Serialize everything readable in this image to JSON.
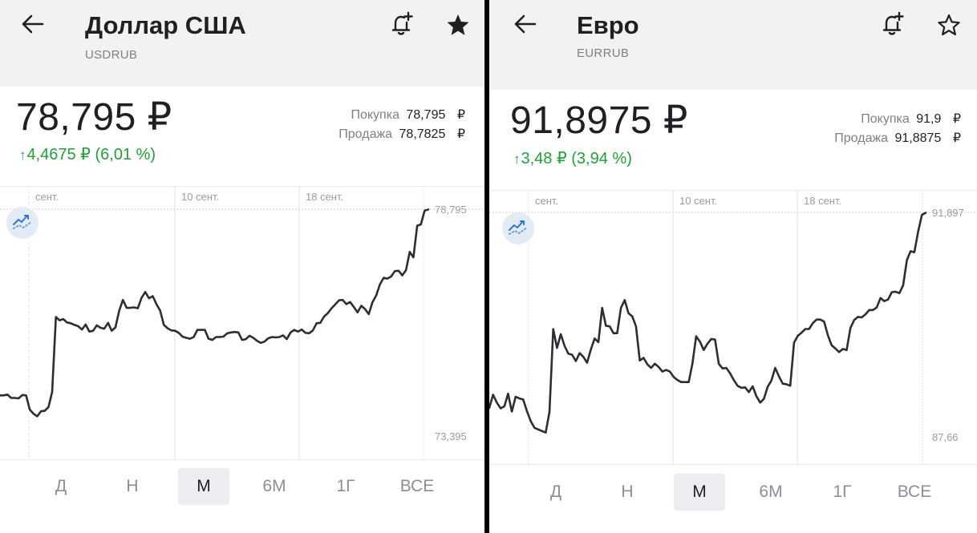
{
  "panels": [
    {
      "title": "Доллар США",
      "ticker": "USDRUB",
      "price": "78,795 ₽",
      "change_arrow": "↑",
      "change": "4,4675 ₽ (6,01 %)",
      "buy_label": "Покупка",
      "buy_value": "78,795",
      "sell_label": "Продажа",
      "sell_value": "78,7825",
      "currency_symbol": "₽",
      "favorite": true,
      "icons": {
        "back": "arrow-left-icon",
        "alert": "bell-plus-icon",
        "favorite": "star-filled-icon",
        "chart_type": "trend-line-icon"
      },
      "chart_data": {
        "type": "line",
        "x_tick_labels": [
          "сент.",
          "10 сент.",
          "18 сент."
        ],
        "y_max_label": "78,795",
        "y_min_label": "73,395",
        "ylim": [
          73.395,
          78.795
        ],
        "grid": true,
        "line_color": "#2d2d33",
        "values": [
          74.33,
          74.33,
          74.35,
          74.27,
          74.27,
          74.26,
          74.34,
          74.33,
          73.99,
          73.89,
          73.83,
          73.95,
          73.96,
          74.05,
          74.41,
          76.21,
          76.13,
          76.16,
          76.08,
          76.06,
          76.02,
          75.99,
          75.91,
          76.03,
          75.86,
          75.88,
          76.01,
          75.95,
          75.93,
          76.07,
          75.88,
          75.96,
          76.36,
          76.62,
          76.43,
          76.43,
          76.44,
          76.42,
          76.67,
          76.81,
          76.66,
          76.71,
          76.52,
          76.36,
          76.02,
          75.94,
          75.89,
          75.88,
          75.83,
          75.74,
          75.71,
          75.69,
          75.73,
          75.9,
          75.9,
          75.9,
          75.69,
          75.66,
          75.73,
          75.73,
          75.74,
          75.82,
          75.84,
          75.85,
          75.84,
          75.66,
          75.68,
          75.76,
          75.71,
          75.64,
          75.59,
          75.62,
          75.7,
          75.73,
          75.72,
          75.73,
          75.77,
          75.68,
          75.84,
          75.9,
          75.86,
          75.91,
          75.83,
          75.82,
          75.89,
          76.06,
          76.07,
          76.22,
          76.3,
          76.42,
          76.51,
          76.61,
          76.62,
          76.52,
          76.57,
          76.45,
          76.32,
          76.48,
          76.4,
          76.28,
          76.56,
          76.73,
          76.99,
          77.15,
          77.13,
          77.18,
          77.31,
          77.32,
          77.21,
          77.33,
          77.77,
          77.64,
          78.4,
          78.43,
          78.76,
          78.79
        ]
      },
      "periods": [
        "Д",
        "Н",
        "М",
        "6М",
        "1Г",
        "ВСЕ"
      ],
      "active_period": "М"
    },
    {
      "title": "Евро",
      "ticker": "EURRUB",
      "price": "91,8975 ₽",
      "change_arrow": "↑",
      "change": "3,48 ₽ (3,94 %)",
      "buy_label": "Покупка",
      "buy_value": "91,9",
      "sell_label": "Продажа",
      "sell_value": "91,8875",
      "currency_symbol": "₽",
      "favorite": false,
      "icons": {
        "back": "arrow-left-icon",
        "alert": "bell-plus-icon",
        "favorite": "star-outline-icon",
        "chart_type": "trend-line-icon"
      },
      "chart_data": {
        "type": "line",
        "x_tick_labels": [
          "сент.",
          "10 сент.",
          "18 сент."
        ],
        "y_max_label": "91,897",
        "y_min_label": "87,66",
        "ylim": [
          87.66,
          91.897
        ],
        "grid": true,
        "line_color": "#2d2d33",
        "values": [
          88.18,
          88.43,
          88.28,
          88.17,
          88.21,
          88.45,
          88.11,
          88.39,
          88.36,
          88.34,
          88.12,
          87.93,
          87.8,
          87.77,
          87.74,
          87.71,
          88.1,
          89.68,
          89.32,
          89.58,
          89.36,
          89.21,
          89.19,
          89.07,
          89.22,
          89.15,
          89.04,
          89.29,
          89.5,
          89.43,
          90.08,
          89.74,
          89.73,
          89.6,
          89.6,
          90.08,
          90.23,
          89.98,
          89.92,
          89.73,
          89.08,
          89.13,
          89.01,
          88.94,
          89.02,
          88.96,
          88.87,
          88.9,
          88.87,
          88.77,
          88.71,
          88.67,
          88.67,
          88.67,
          89.02,
          89.54,
          89.44,
          89.28,
          89.4,
          89.49,
          89.48,
          89.02,
          88.93,
          88.94,
          88.84,
          88.71,
          88.6,
          88.56,
          88.57,
          88.48,
          88.59,
          88.4,
          88.28,
          88.35,
          88.58,
          88.7,
          88.94,
          88.78,
          88.64,
          88.63,
          88.6,
          89.42,
          89.55,
          89.61,
          89.68,
          89.68,
          89.79,
          89.86,
          89.86,
          89.82,
          89.56,
          89.37,
          89.31,
          89.24,
          89.3,
          89.28,
          89.7,
          89.85,
          89.91,
          89.9,
          89.96,
          90.04,
          90.04,
          90.09,
          90.27,
          90.21,
          90.24,
          90.38,
          90.39,
          90.36,
          90.51,
          90.99,
          91.16,
          91.14,
          91.53,
          91.85,
          91.89
        ]
      },
      "periods": [
        "Д",
        "Н",
        "М",
        "6М",
        "1Г",
        "ВСЕ"
      ],
      "active_period": "М"
    }
  ]
}
